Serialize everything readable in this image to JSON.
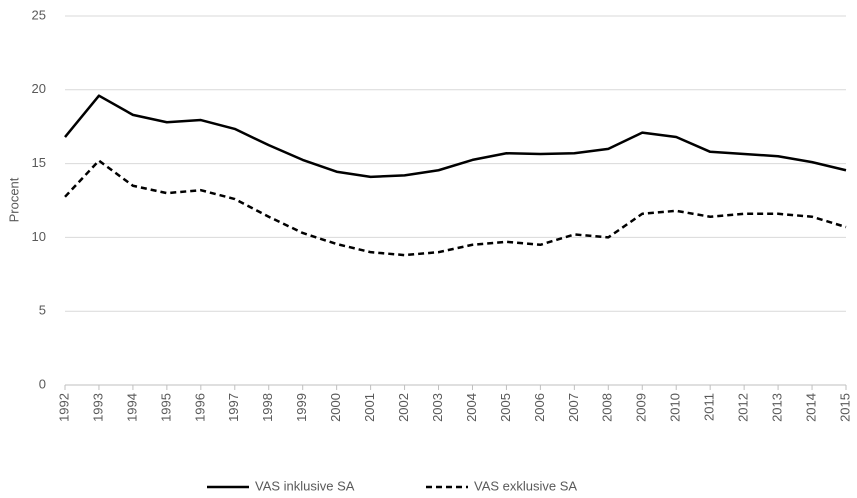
{
  "chart_data": {
    "type": "line",
    "y_label": "Procent",
    "categories": [
      "1992",
      "1993",
      "1994",
      "1995",
      "1996",
      "1997",
      "1998",
      "1999",
      "2000",
      "2001",
      "2002",
      "2003",
      "2004",
      "2005",
      "2006",
      "2007",
      "2008",
      "2009",
      "2010",
      "2011",
      "2012",
      "2013",
      "2014",
      "2015"
    ],
    "series": [
      {
        "name": "VAS inklusive SA",
        "color": "#000000",
        "dash": "solid",
        "values": [
          16.8,
          19.6,
          18.3,
          17.8,
          17.95,
          17.35,
          16.25,
          15.25,
          14.45,
          14.1,
          14.2,
          14.55,
          15.25,
          15.7,
          15.65,
          15.7,
          16.0,
          17.1,
          16.8,
          15.8,
          15.65,
          15.5,
          15.1,
          14.55
        ]
      },
      {
        "name": "VAS exklusive SA",
        "color": "#000000",
        "dash": "dashed",
        "values": [
          12.75,
          15.2,
          13.5,
          13.0,
          13.2,
          12.6,
          11.4,
          10.3,
          9.55,
          9.0,
          8.8,
          9.0,
          9.5,
          9.7,
          9.5,
          10.2,
          10.0,
          11.6,
          11.8,
          11.4,
          11.6,
          11.6,
          11.4,
          10.7
        ]
      }
    ],
    "ylim": [
      0,
      25
    ],
    "yticks": [
      0,
      5,
      10,
      15,
      20,
      25
    ],
    "grid": true,
    "legend": "bottom"
  }
}
